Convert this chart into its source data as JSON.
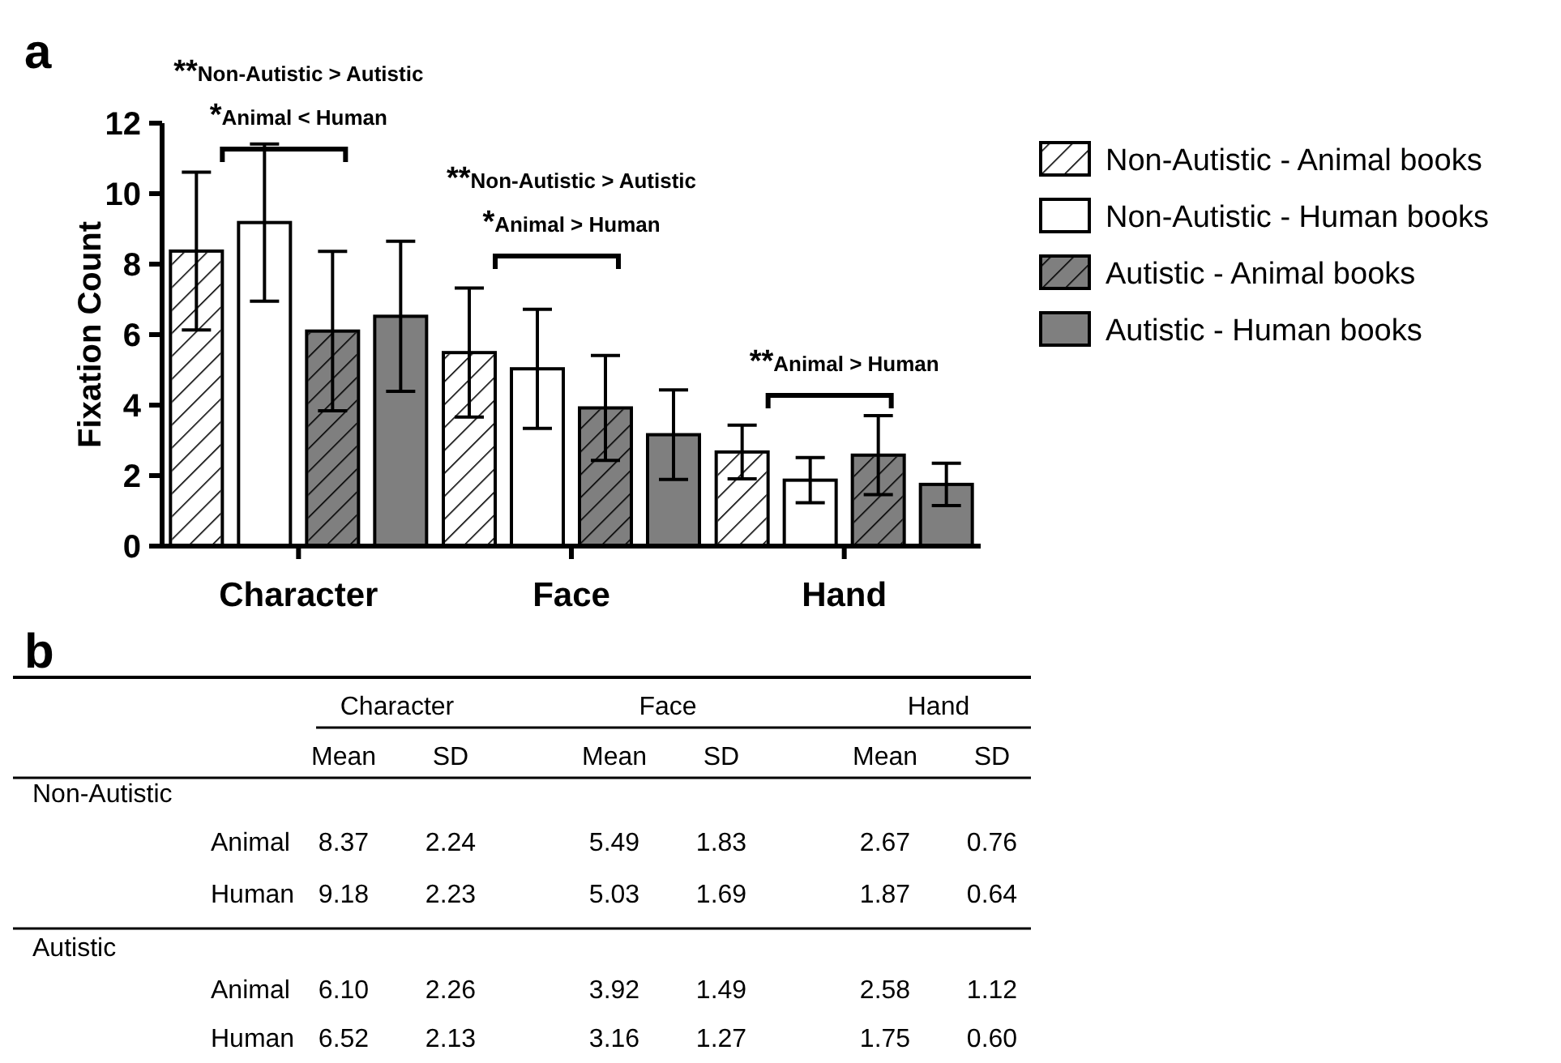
{
  "chart_data": {
    "type": "bar",
    "ylabel": "Fixation Count",
    "categories": [
      "Character",
      "Face",
      "Hand"
    ],
    "series": [
      {
        "name": "Non-Autistic - Animal books",
        "color": "#ffffff",
        "values": [
          8.37,
          5.49,
          2.67
        ],
        "errors": [
          2.24,
          1.83,
          0.76
        ],
        "value_labels": [
          "8.37",
          "5.49",
          "2.67"
        ]
      },
      {
        "name": "Non-Autistic - Human books",
        "color": "#ffffff",
        "values": [
          9.18,
          5.03,
          1.87
        ],
        "errors": [
          2.23,
          1.69,
          0.64
        ],
        "value_labels": [
          "9.18",
          "5.03",
          "1.87"
        ]
      },
      {
        "name": "Autistic - Animal books",
        "color": "#7f7f7f",
        "values": [
          6.1,
          3.92,
          2.58
        ],
        "errors": [
          2.26,
          1.49,
          1.12
        ],
        "value_labels": [
          "6.10",
          "3.92",
          "2.58"
        ]
      },
      {
        "name": "Autistic - Human books",
        "color": "#7f7f7f",
        "values": [
          6.52,
          3.16,
          1.75
        ],
        "errors": [
          2.13,
          1.27,
          0.6
        ],
        "value_labels": [
          "6.52",
          "3.16",
          "1.75"
        ]
      }
    ],
    "ylim": [
      0,
      12
    ],
    "yticks": [
      0,
      2,
      4,
      6,
      8,
      10,
      12
    ],
    "grid": false,
    "legend": "right",
    "annotations": [
      "a",
      "b",
      "**Non-Autistic > Autistic",
      "*Animal < Human",
      "**Non-Autistic > Autistic",
      "*Animal > Human",
      "**Animal > Human",
      "Mean",
      "SD",
      "Non-Autistic",
      "Autistic",
      "Animal",
      "Human",
      "2.24",
      "1.83",
      "0.76",
      "2.23",
      "1.69",
      "0.64",
      "2.26",
      "1.49",
      "1.12",
      "2.13",
      "1.27",
      "0.60"
    ]
  }
}
